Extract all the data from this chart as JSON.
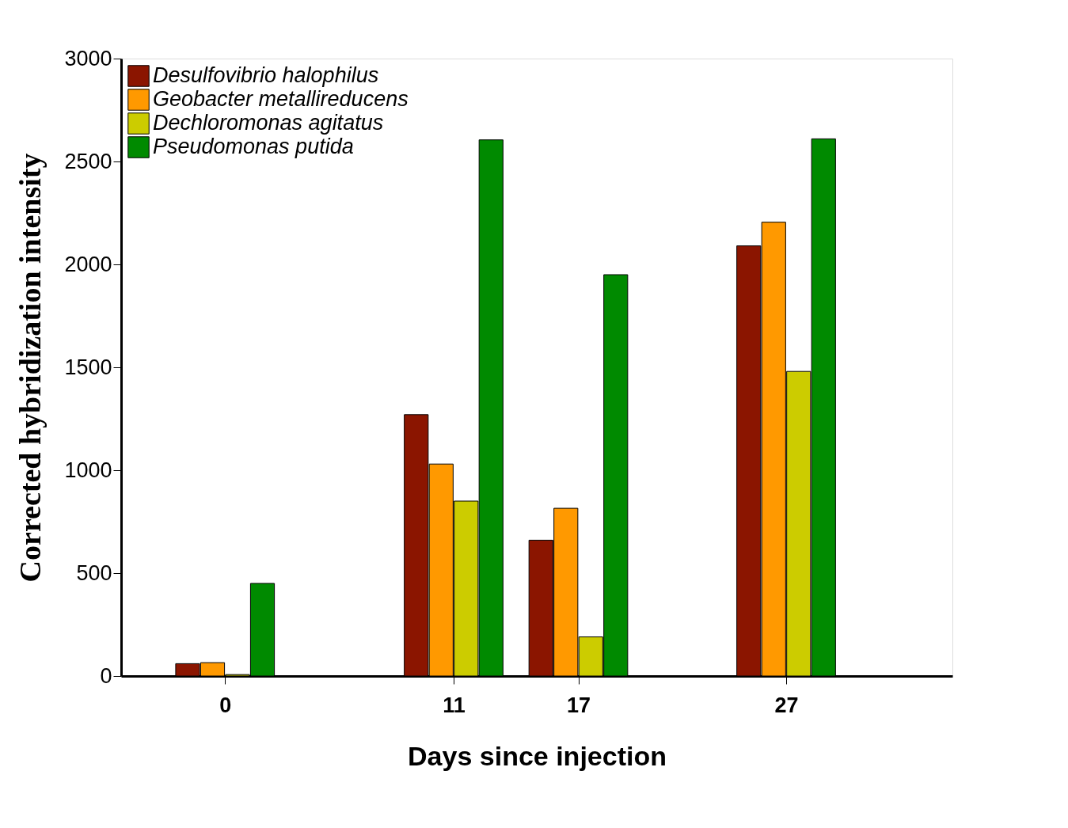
{
  "chart_data": {
    "type": "bar",
    "xlabel": "Days since injection",
    "ylabel": "Corrected hybridization intensity",
    "x": [
      0,
      11,
      17,
      27
    ],
    "series": [
      {
        "name": "Desulfovibrio halophilus",
        "color": "#8b1500",
        "values": [
          60,
          1270,
          660,
          2090
        ]
      },
      {
        "name": "Geobacter metallireducens",
        "color": "#ff9900",
        "values": [
          65,
          1030,
          815,
          2205
        ]
      },
      {
        "name": "Dechloromonas agitatus",
        "color": "#cccc00",
        "values": [
          7,
          850,
          190,
          1480
        ]
      },
      {
        "name": "Pseudomonas putida",
        "color": "#008a00",
        "values": [
          450,
          2605,
          1950,
          2610
        ]
      }
    ],
    "xlim": [
      -5,
      35
    ],
    "xticks": [
      0,
      11,
      17,
      27
    ],
    "ylim": [
      0,
      3000
    ],
    "yticks": [
      0,
      500,
      1000,
      1500,
      2000,
      2500,
      3000
    ],
    "grid": false,
    "legend": "top left"
  }
}
